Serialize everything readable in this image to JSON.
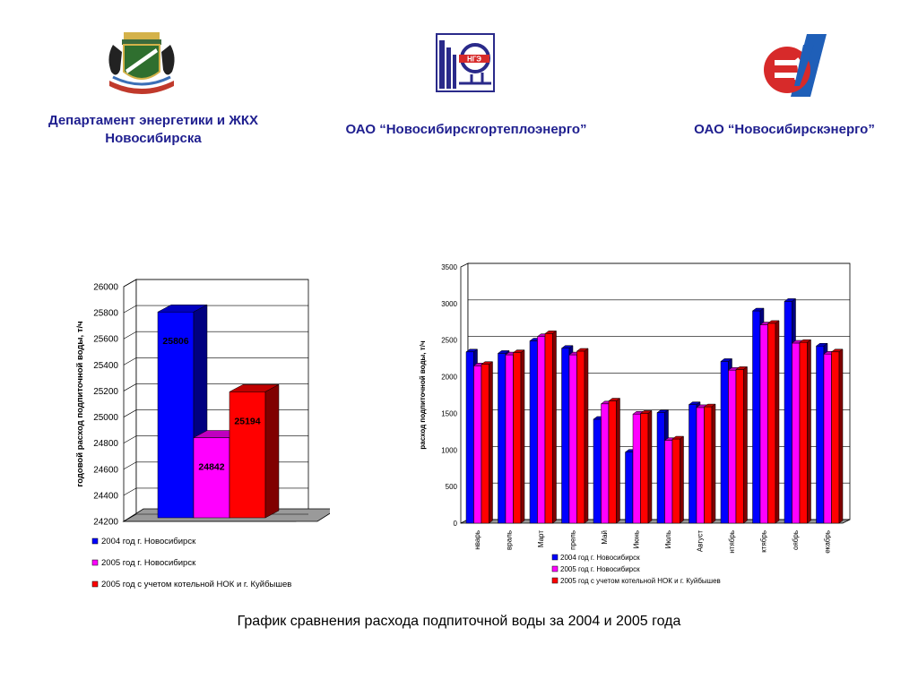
{
  "header": {
    "orgs": [
      {
        "name_line1": "Департамент энергетики и ЖКХ",
        "name_line2": "Новосибирска",
        "logo": "novosibirsk-coat-of-arms"
      },
      {
        "name_line1": "ОАО “Новосибирскгортеплоэнерго”",
        "name_line2": "",
        "logo": "ngte-logo",
        "logo_text": "НГЭ"
      },
      {
        "name_line1": "ОАО “Новосибирскэнерго”",
        "name_line2": "",
        "logo": "novosibirskenergo-logo"
      }
    ]
  },
  "colors": {
    "org_text": "#1f1f8f",
    "series_2004": "#0000ff",
    "series_2005": "#ff00ff",
    "series_2005_total": "#ff0000"
  },
  "chart_data": [
    {
      "type": "bar",
      "title": "",
      "xlabel": "",
      "ylabel": "годовой расход подпиточной воды, т/ч",
      "ylim": [
        24200,
        26000
      ],
      "yticks": [
        "24200",
        "24400",
        "24600",
        "24800",
        "25000",
        "25200",
        "25400",
        "25600",
        "25800",
        "26000"
      ],
      "series": [
        {
          "name": "2004 год г. Новосибирск",
          "values": [
            25806
          ],
          "label": "25806"
        },
        {
          "name": "2005 год г. Новосибирск",
          "values": [
            24842
          ],
          "label": "24842"
        },
        {
          "name": "2005 год с учетом котельной НОК и г. Куйбышев",
          "values": [
            25194
          ],
          "label": "25194"
        }
      ],
      "grid": true,
      "legend": "bottom"
    },
    {
      "type": "bar",
      "title": "",
      "xlabel": "",
      "ylabel": "расход подпиточной воды, т/ч",
      "ylim": [
        0,
        3500
      ],
      "yticks": [
        "0",
        "500",
        "1000",
        "1500",
        "2000",
        "2500",
        "3000",
        "3500"
      ],
      "categories": [
        "нварь",
        "враль",
        "Март",
        "прель",
        "Май",
        "Июнь",
        "Июль",
        "Август",
        "нтябрь",
        "ктябрь",
        "оябрь",
        "екабрь"
      ],
      "series": [
        {
          "name": "2004 год г. Новосибирск",
          "values": [
            2340,
            2320,
            2490,
            2390,
            1420,
            970,
            1510,
            1620,
            2210,
            2900,
            3030,
            2420
          ]
        },
        {
          "name": "2005 год г. Новосибирск",
          "values": [
            2150,
            2300,
            2550,
            2300,
            1630,
            1490,
            1130,
            1580,
            2090,
            2710,
            2460,
            2310
          ]
        },
        {
          "name": "2005 год с учетом котельной НОК и г. Куйбышев",
          "values": [
            2170,
            2330,
            2590,
            2350,
            1670,
            1500,
            1150,
            1590,
            2100,
            2730,
            2470,
            2340
          ]
        }
      ],
      "grid": true,
      "legend": "bottom"
    }
  ],
  "caption": "График сравнения расхода подпиточной воды за 2004 и 2005 года"
}
